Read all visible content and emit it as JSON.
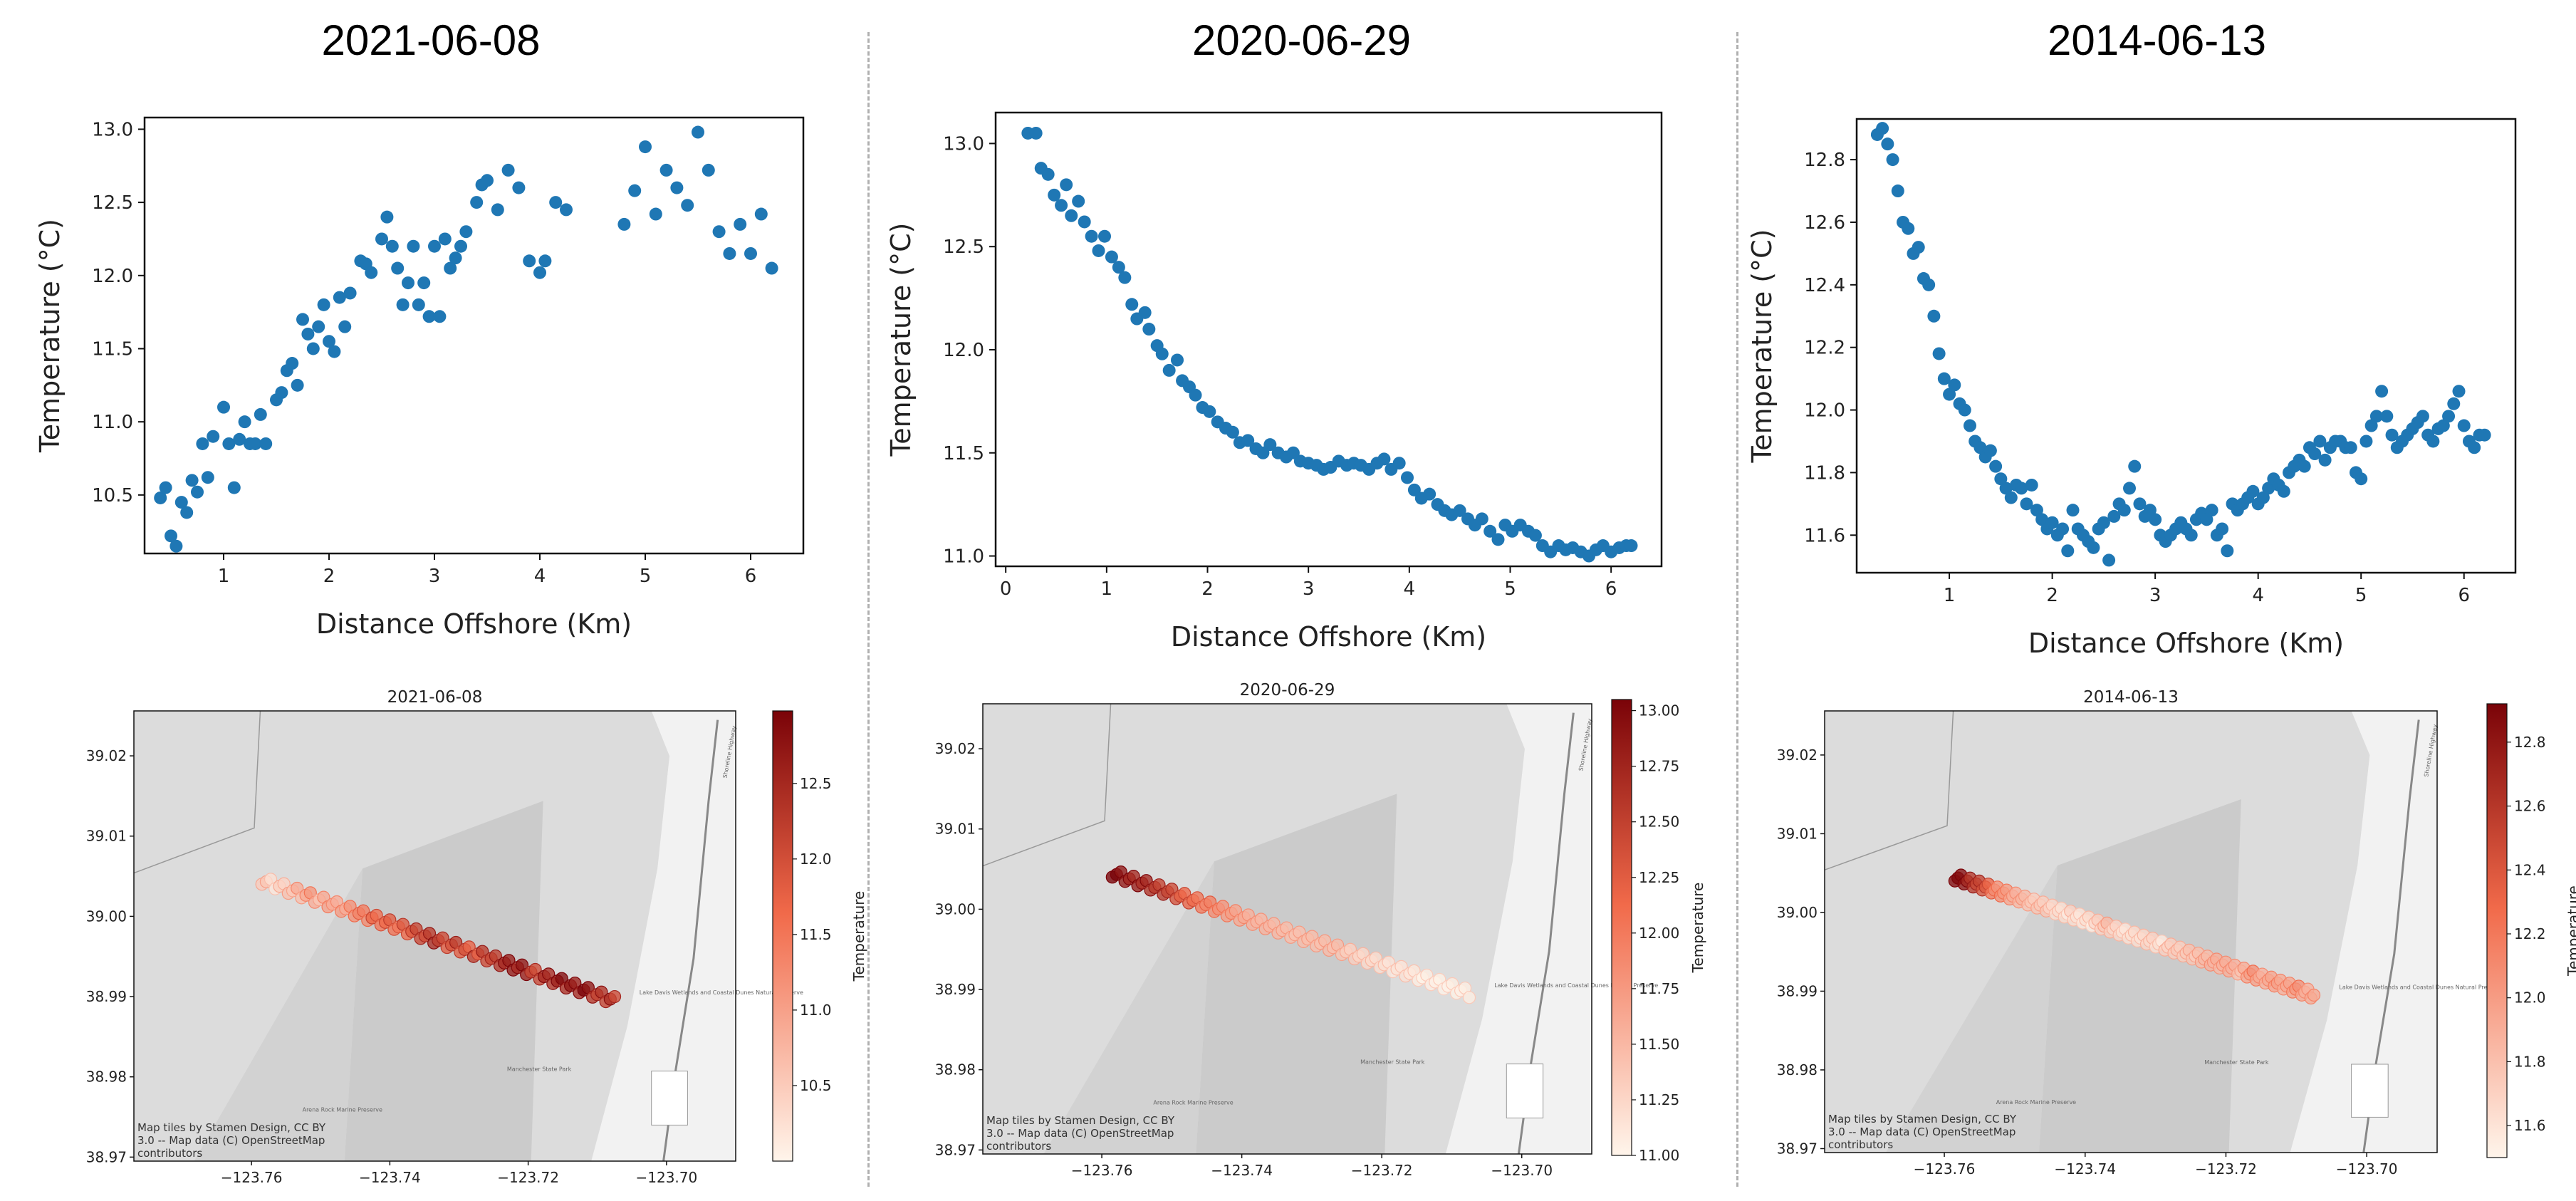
{
  "panels": [
    {
      "date": "2021-06-08"
    },
    {
      "date": "2020-06-29"
    },
    {
      "date": "2014-06-13"
    }
  ],
  "map_common": {
    "attribution_line1": "Map tiles by Stamen Design, CC BY",
    "attribution_line2": "3.0 -- Map data (C) OpenStreetMap",
    "attribution_line3": "contributors",
    "colorbar_label": "Temperature",
    "lat_ticks": [
      "39.02",
      "39.01",
      "39.00",
      "38.99",
      "38.98",
      "38.97"
    ],
    "lon_ticks": [
      "−123.76",
      "−123.74",
      "−123.72",
      "−123.70"
    ],
    "place_labels": [
      "Lake Davis Wetlands and Coastal Dunes Natural Preserve",
      "Manchester State Park",
      "Arena Rock Marine Preserve",
      "Shoreline Highway"
    ]
  },
  "colors": {
    "point": "#1f77b4",
    "cmap_low": "#fff5eb",
    "cmap_mid": "#f16a4a",
    "cmap_high": "#7a0308",
    "land": "#dcdcdc",
    "land_dark": "#cbcbcb",
    "shore": "#f2f2f2"
  },
  "chart_data": [
    {
      "type": "scatter",
      "title": "2021-06-08",
      "xlabel": "Distance Offshore (Km)",
      "ylabel": "Temperature (°C)",
      "xlim": [
        0.25,
        6.5
      ],
      "ylim": [
        10.1,
        13.08
      ],
      "xticks": [
        1,
        2,
        3,
        4,
        5,
        6
      ],
      "yticks": [
        10.5,
        11.0,
        11.5,
        12.0,
        12.5,
        13.0
      ],
      "ytick_labels": [
        "10.5",
        "11.0",
        "11.5",
        "12.0",
        "12.5",
        "13.0"
      ],
      "x": [
        0.4,
        0.45,
        0.5,
        0.55,
        0.6,
        0.65,
        0.7,
        0.75,
        0.8,
        0.85,
        0.9,
        1.0,
        1.05,
        1.1,
        1.15,
        1.2,
        1.25,
        1.3,
        1.35,
        1.4,
        1.5,
        1.55,
        1.6,
        1.65,
        1.7,
        1.75,
        1.8,
        1.85,
        1.9,
        1.95,
        2.0,
        2.05,
        2.1,
        2.15,
        2.2,
        2.3,
        2.35,
        2.4,
        2.5,
        2.55,
        2.6,
        2.65,
        2.7,
        2.75,
        2.8,
        2.85,
        2.9,
        2.95,
        3.0,
        3.05,
        3.1,
        3.15,
        3.2,
        3.25,
        3.3,
        3.4,
        3.45,
        3.5,
        3.6,
        3.7,
        3.8,
        3.9,
        4.0,
        4.05,
        4.15,
        4.25,
        4.8,
        4.9,
        5.0,
        5.1,
        5.2,
        5.3,
        5.4,
        5.5,
        5.6,
        5.7,
        5.8,
        5.9,
        6.0,
        6.1,
        6.2
      ],
      "y": [
        10.48,
        10.55,
        10.22,
        10.15,
        10.45,
        10.38,
        10.6,
        10.52,
        10.85,
        10.62,
        10.9,
        11.1,
        10.85,
        10.55,
        10.88,
        11.0,
        10.85,
        10.85,
        11.05,
        10.85,
        11.15,
        11.2,
        11.35,
        11.4,
        11.25,
        11.7,
        11.6,
        11.5,
        11.65,
        11.8,
        11.55,
        11.48,
        11.85,
        11.65,
        11.88,
        12.1,
        12.08,
        12.02,
        12.25,
        12.4,
        12.2,
        12.05,
        11.8,
        11.95,
        12.2,
        11.8,
        11.95,
        11.72,
        12.2,
        11.72,
        12.25,
        12.05,
        12.12,
        12.2,
        12.3,
        12.5,
        12.62,
        12.65,
        12.45,
        12.72,
        12.6,
        12.1,
        12.02,
        12.1,
        12.5,
        12.45,
        12.35,
        12.58,
        12.88,
        12.42,
        12.72,
        12.6,
        12.48,
        12.98,
        12.72,
        12.3,
        12.15,
        12.35,
        12.15,
        12.42,
        12.05
      ],
      "map": {
        "title": "2021-06-08",
        "colorbar_ticks": [
          10.5,
          11.0,
          11.5,
          12.0,
          12.5
        ],
        "colorbar_tick_labels": [
          "10.5",
          "11.0",
          "11.5",
          "12.0",
          "12.5"
        ],
        "clim": [
          10.0,
          12.98
        ]
      }
    },
    {
      "type": "scatter",
      "title": "2020-06-29",
      "xlabel": "Distance Offshore (Km)",
      "ylabel": "Temperature (°C)",
      "xlim": [
        -0.1,
        6.5
      ],
      "ylim": [
        10.95,
        13.15
      ],
      "xticks": [
        0,
        1,
        2,
        3,
        4,
        5,
        6
      ],
      "yticks": [
        11.0,
        11.5,
        12.0,
        12.5,
        13.0
      ],
      "ytick_labels": [
        "11.0",
        "11.5",
        "12.0",
        "12.5",
        "13.0"
      ],
      "x": [
        0.22,
        0.3,
        0.35,
        0.42,
        0.48,
        0.55,
        0.6,
        0.65,
        0.72,
        0.78,
        0.85,
        0.92,
        0.98,
        1.05,
        1.12,
        1.18,
        1.25,
        1.3,
        1.38,
        1.42,
        1.5,
        1.55,
        1.62,
        1.7,
        1.75,
        1.82,
        1.88,
        1.95,
        2.02,
        2.1,
        2.18,
        2.25,
        2.32,
        2.4,
        2.48,
        2.55,
        2.62,
        2.7,
        2.78,
        2.85,
        2.92,
        3.0,
        3.08,
        3.15,
        3.22,
        3.3,
        3.38,
        3.45,
        3.52,
        3.6,
        3.68,
        3.75,
        3.82,
        3.9,
        3.98,
        4.05,
        4.12,
        4.2,
        4.28,
        4.35,
        4.42,
        4.5,
        4.58,
        4.65,
        4.72,
        4.8,
        4.88,
        4.95,
        5.02,
        5.1,
        5.18,
        5.25,
        5.32,
        5.4,
        5.48,
        5.55,
        5.62,
        5.7,
        5.78,
        5.85,
        5.92,
        6.0,
        6.08,
        6.15,
        6.2
      ],
      "y": [
        13.05,
        13.05,
        12.88,
        12.85,
        12.75,
        12.7,
        12.8,
        12.65,
        12.72,
        12.62,
        12.55,
        12.48,
        12.55,
        12.45,
        12.4,
        12.35,
        12.22,
        12.15,
        12.18,
        12.1,
        12.02,
        11.98,
        11.9,
        11.95,
        11.85,
        11.82,
        11.78,
        11.72,
        11.7,
        11.65,
        11.62,
        11.6,
        11.55,
        11.56,
        11.52,
        11.5,
        11.54,
        11.5,
        11.48,
        11.5,
        11.46,
        11.45,
        11.44,
        11.42,
        11.43,
        11.46,
        11.44,
        11.45,
        11.44,
        11.42,
        11.45,
        11.47,
        11.42,
        11.45,
        11.38,
        11.32,
        11.28,
        11.3,
        11.25,
        11.22,
        11.2,
        11.22,
        11.18,
        11.15,
        11.18,
        11.12,
        11.08,
        11.15,
        11.12,
        11.15,
        11.12,
        11.1,
        11.05,
        11.02,
        11.05,
        11.03,
        11.04,
        11.02,
        11.0,
        11.03,
        11.05,
        11.02,
        11.04,
        11.05,
        11.05
      ],
      "map": {
        "title": "2020-06-29",
        "colorbar_ticks": [
          11.0,
          11.25,
          11.5,
          11.75,
          12.0,
          12.25,
          12.5,
          12.75,
          13.0
        ],
        "colorbar_tick_labels": [
          "11.00",
          "11.25",
          "11.50",
          "11.75",
          "12.00",
          "12.25",
          "12.50",
          "12.75",
          "13.00"
        ],
        "clim": [
          11.0,
          13.05
        ]
      }
    },
    {
      "type": "scatter",
      "title": "2014-06-13",
      "xlabel": "Distance Offshore (Km)",
      "ylabel": "Temperature (°C)",
      "xlim": [
        0.1,
        6.5
      ],
      "ylim": [
        11.48,
        12.93
      ],
      "xticks": [
        1,
        2,
        3,
        4,
        5,
        6
      ],
      "yticks": [
        11.6,
        11.8,
        12.0,
        12.2,
        12.4,
        12.6,
        12.8
      ],
      "ytick_labels": [
        "11.6",
        "11.8",
        "12.0",
        "12.2",
        "12.4",
        "12.6",
        "12.8"
      ],
      "x": [
        0.3,
        0.35,
        0.4,
        0.45,
        0.5,
        0.55,
        0.6,
        0.65,
        0.7,
        0.75,
        0.8,
        0.85,
        0.9,
        0.95,
        1.0,
        1.05,
        1.1,
        1.15,
        1.2,
        1.25,
        1.3,
        1.35,
        1.4,
        1.45,
        1.5,
        1.55,
        1.6,
        1.65,
        1.7,
        1.75,
        1.8,
        1.85,
        1.9,
        1.95,
        2.0,
        2.05,
        2.1,
        2.15,
        2.2,
        2.25,
        2.3,
        2.35,
        2.4,
        2.45,
        2.5,
        2.55,
        2.6,
        2.65,
        2.7,
        2.75,
        2.8,
        2.85,
        2.9,
        2.95,
        3.0,
        3.05,
        3.1,
        3.15,
        3.2,
        3.25,
        3.3,
        3.35,
        3.4,
        3.45,
        3.5,
        3.55,
        3.6,
        3.65,
        3.7,
        3.75,
        3.8,
        3.85,
        3.9,
        3.95,
        4.0,
        4.05,
        4.1,
        4.15,
        4.2,
        4.25,
        4.3,
        4.35,
        4.4,
        4.45,
        4.5,
        4.55,
        4.6,
        4.65,
        4.7,
        4.75,
        4.8,
        4.85,
        4.9,
        4.95,
        5.0,
        5.05,
        5.1,
        5.15,
        5.2,
        5.25,
        5.3,
        5.35,
        5.4,
        5.45,
        5.5,
        5.55,
        5.6,
        5.65,
        5.7,
        5.75,
        5.8,
        5.85,
        5.9,
        5.95,
        6.0,
        6.05,
        6.1,
        6.15,
        6.2
      ],
      "y": [
        12.88,
        12.9,
        12.85,
        12.8,
        12.7,
        12.6,
        12.58,
        12.5,
        12.52,
        12.42,
        12.4,
        12.3,
        12.18,
        12.1,
        12.05,
        12.08,
        12.02,
        12.0,
        11.95,
        11.9,
        11.88,
        11.85,
        11.87,
        11.82,
        11.78,
        11.75,
        11.72,
        11.76,
        11.75,
        11.7,
        11.76,
        11.68,
        11.65,
        11.62,
        11.64,
        11.6,
        11.62,
        11.55,
        11.68,
        11.62,
        11.6,
        11.58,
        11.56,
        11.62,
        11.64,
        11.52,
        11.66,
        11.7,
        11.68,
        11.75,
        11.82,
        11.7,
        11.66,
        11.68,
        11.65,
        11.6,
        11.58,
        11.6,
        11.62,
        11.64,
        11.62,
        11.6,
        11.65,
        11.67,
        11.65,
        11.68,
        11.6,
        11.62,
        11.55,
        11.7,
        11.68,
        11.7,
        11.72,
        11.74,
        11.7,
        11.72,
        11.75,
        11.78,
        11.76,
        11.74,
        11.8,
        11.82,
        11.84,
        11.82,
        11.88,
        11.86,
        11.9,
        11.84,
        11.88,
        11.9,
        11.9,
        11.88,
        11.88,
        11.8,
        11.78,
        11.9,
        11.95,
        11.98,
        12.06,
        11.98,
        11.92,
        11.88,
        11.9,
        11.92,
        11.94,
        11.96,
        11.98,
        11.92,
        11.9,
        11.94,
        11.95,
        11.98,
        12.02,
        12.06,
        11.95,
        11.9,
        11.88,
        11.92,
        11.92
      ],
      "map": {
        "title": "2014-06-13",
        "colorbar_ticks": [
          11.6,
          11.8,
          12.0,
          12.2,
          12.4,
          12.6,
          12.8
        ],
        "colorbar_tick_labels": [
          "11.6",
          "11.8",
          "12.0",
          "12.2",
          "12.4",
          "12.6",
          "12.8"
        ],
        "clim": [
          11.5,
          12.92
        ]
      }
    }
  ]
}
